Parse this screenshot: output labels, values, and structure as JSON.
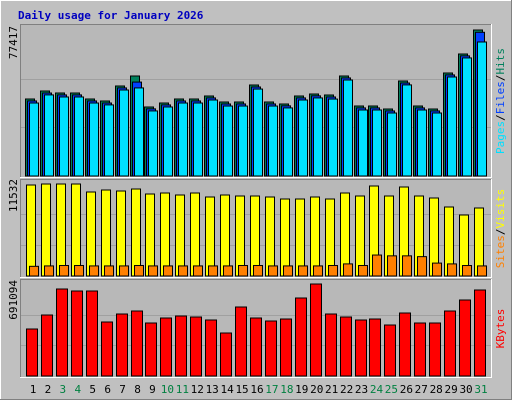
{
  "chart_data": [
    {
      "type": "bar",
      "title": "Daily usage for January 2026",
      "categories": [
        "1",
        "2",
        "3",
        "4",
        "5",
        "6",
        "7",
        "8",
        "9",
        "10",
        "11",
        "12",
        "13",
        "14",
        "15",
        "16",
        "17",
        "18",
        "19",
        "20",
        "21",
        "22",
        "23",
        "24",
        "25",
        "26",
        "27",
        "28",
        "29",
        "30",
        "31"
      ],
      "category_colors": [
        "#000000",
        "#000000",
        "#008040",
        "#008040",
        "#000000",
        "#000000",
        "#000000",
        "#000000",
        "#000000",
        "#008040",
        "#008040",
        "#000000",
        "#000000",
        "#000000",
        "#000000",
        "#000000",
        "#008040",
        "#008040",
        "#000000",
        "#000000",
        "#000000",
        "#000000",
        "#000000",
        "#008040",
        "#008040",
        "#000000",
        "#000000",
        "#000000",
        "#000000",
        "#000000",
        "#008040"
      ],
      "legend_separator": "/",
      "series": [
        {
          "name": "Hits",
          "color": "#00805c",
          "values": [
            40833,
            45075,
            44014,
            44014,
            40833,
            39772,
            47726,
            53029,
            36590,
            38711,
            40833,
            40833,
            42423,
            39241,
            39241,
            48256,
            39241,
            38181,
            42423,
            43483,
            42953,
            53029,
            37120,
            37120,
            35529,
            50377,
            37120,
            35529,
            54620,
            64694,
            77417
          ]
        },
        {
          "name": "Files",
          "color": "#0040ff",
          "values": [
            39800,
            44000,
            43000,
            43000,
            39800,
            38700,
            46700,
            49800,
            35600,
            37700,
            39800,
            39800,
            41400,
            38200,
            38200,
            47200,
            38200,
            37200,
            41400,
            42500,
            41900,
            52000,
            36100,
            36100,
            34500,
            49300,
            36100,
            34500,
            53600,
            63700,
            76200
          ]
        },
        {
          "name": "Pages",
          "color": "#00e0ff",
          "values": [
            38700,
            43000,
            41900,
            41900,
            38700,
            37700,
            45600,
            46700,
            34500,
            36600,
            38700,
            38700,
            40300,
            37100,
            37100,
            46100,
            37100,
            36100,
            40300,
            41400,
            40800,
            50900,
            35000,
            35000,
            33400,
            48300,
            35000,
            33400,
            52500,
            62600,
            71060
          ]
        }
      ],
      "ylim": [
        0,
        77417
      ],
      "yticks": [
        77417
      ],
      "gridlines": [
        25806,
        51611
      ]
    },
    {
      "type": "bar",
      "legend_separator": "/",
      "series": [
        {
          "name": "Visits",
          "color": "#ffff00",
          "values": [
            11284,
            11408,
            11408,
            11408,
            10416,
            10664,
            10540,
            10788,
            10168,
            10292,
            10044,
            10292,
            9796,
            10044,
            9920,
            9920,
            9796,
            9548,
            9548,
            9796,
            9548,
            10292,
            9920,
            11160,
            9920,
            11036,
            9920,
            9672,
            8556,
            7564,
            8432
          ]
        },
        {
          "name": "Sites",
          "color": "#ff8000",
          "values": [
            1200,
            1250,
            1300,
            1300,
            1250,
            1250,
            1250,
            1300,
            1250,
            1250,
            1250,
            1250,
            1250,
            1250,
            1300,
            1300,
            1250,
            1250,
            1250,
            1250,
            1300,
            1500,
            1300,
            2600,
            2500,
            2500,
            2400,
            1600,
            1500,
            1300,
            1250
          ]
        }
      ],
      "ylim": [
        0,
        11532
      ],
      "yticks": [
        11532
      ],
      "gridlines": [
        3844,
        7688
      ]
    },
    {
      "type": "bar",
      "series": [
        {
          "name": "KBytes",
          "color": "#ff0000",
          "values": [
            353064,
            458232,
            653544,
            638520,
            638520,
            405648,
            465744,
            488280,
            398136,
            435696,
            450720,
            443208,
            420672,
            323016,
            518328,
            435696,
            413160,
            428184,
            585936,
            691094,
            465744,
            443208,
            420672,
            428184,
            383112,
            473256,
            398136,
            398136,
            488280,
            570912,
            646032
          ]
        }
      ],
      "ylim": [
        0,
        691094
      ],
      "yticks": [
        691094
      ],
      "gridlines": [
        230365,
        460729
      ]
    }
  ]
}
